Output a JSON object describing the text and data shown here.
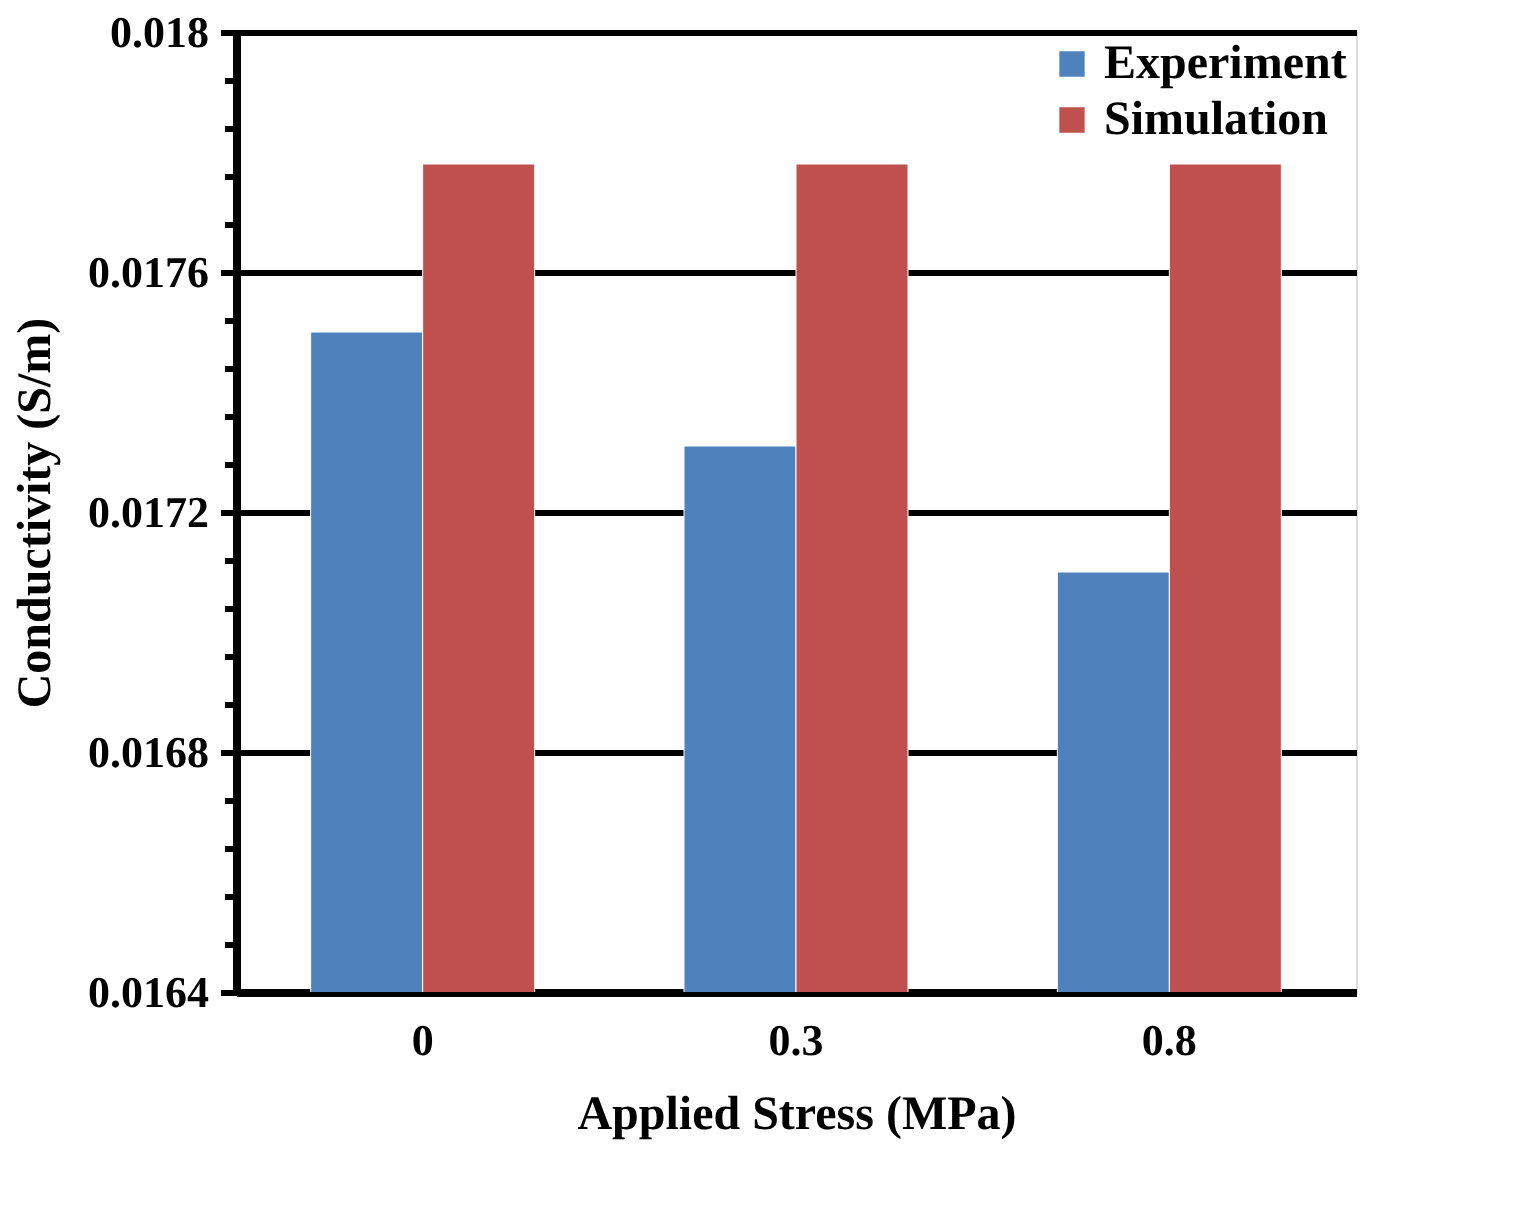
{
  "chart_data": {
    "type": "bar",
    "xlabel": "Applied Stress (MPa)",
    "ylabel": "Conductivity (S/m)",
    "categories": [
      "0",
      "0.3",
      "0.8"
    ],
    "series": [
      {
        "name": "Experiment",
        "color": "#4f81bd",
        "values": [
          0.0175,
          0.01731,
          0.0171
        ]
      },
      {
        "name": "Simulation",
        "color": "#c0504d",
        "values": [
          0.01778,
          0.01778,
          0.01778
        ]
      }
    ],
    "ylim": [
      0.0164,
      0.018
    ],
    "yticks": [
      0.0164,
      {
        "value": 0.01648,
        "label": null
      },
      {
        "value": 0.01656,
        "label": null
      },
      {
        "value": 0.01664,
        "label": null
      },
      {
        "value": 0.01672,
        "label": null
      },
      0.0168,
      {
        "value": 0.01688,
        "label": null
      },
      {
        "value": 0.01696,
        "label": null
      },
      {
        "value": 0.01704,
        "label": null
      },
      {
        "value": 0.01712,
        "label": null
      },
      0.0172,
      {
        "value": 0.01728,
        "label": null
      },
      {
        "value": 0.01736,
        "label": null
      },
      {
        "value": 0.01744,
        "label": null
      },
      {
        "value": 0.01752,
        "label": null
      },
      0.0176,
      {
        "value": 0.01768,
        "label": null
      },
      {
        "value": 0.01776,
        "label": null
      },
      {
        "value": 0.01784,
        "label": null
      },
      {
        "value": 0.01792,
        "label": null
      },
      0.018
    ],
    "grid": "y",
    "legend": "top right"
  }
}
